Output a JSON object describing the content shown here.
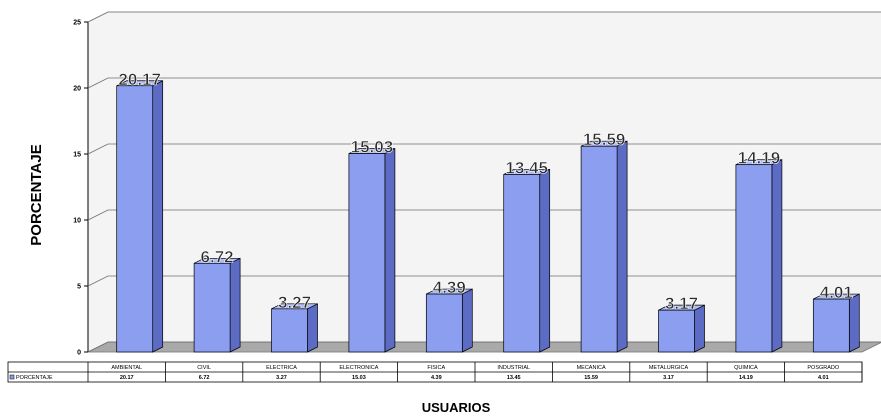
{
  "chart_data": {
    "type": "bar",
    "categories": [
      "AMBIENTAL",
      "CIVIL",
      "ELECTRICA",
      "ELECTRONICA",
      "FISICA",
      "INDUSTRIAL",
      "MECANICA",
      "METALURGICA",
      "QUIMICA",
      "POSGRADO"
    ],
    "series": [
      {
        "name": "PORCENTAJE",
        "values": [
          20.17,
          6.72,
          3.27,
          15.03,
          4.39,
          13.45,
          15.59,
          3.17,
          14.19,
          4.01
        ],
        "table_values": [
          "20.17",
          "6.72",
          "3.27",
          "15.03",
          "4.39",
          "13.45",
          "15.59",
          "3.17",
          "14.19",
          "4.01"
        ],
        "data_labels": [
          "20.17",
          "6.72",
          "3.27",
          "15.03",
          "4.39",
          "13.45",
          "15.59",
          "3.17",
          "14.19",
          "4.01"
        ]
      }
    ],
    "title": "",
    "xlabel": "USUARIOS",
    "ylabel": "PORCENTAJE",
    "ylim": [
      0,
      25
    ],
    "yticks": [
      "0",
      "5",
      "10",
      "15",
      "20",
      "25"
    ],
    "grid": true,
    "legend": "data-table-left",
    "colors": {
      "bar_front": "#8c9ef0",
      "bar_side": "#5c6cc4",
      "bar_top": "#b0bcf6",
      "wall": "#f4f4f4",
      "floor": "#a9a9a9"
    }
  }
}
